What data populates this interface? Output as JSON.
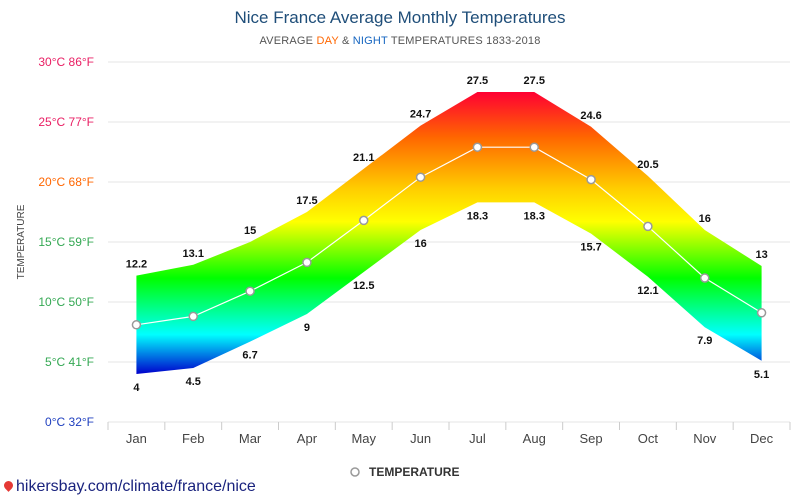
{
  "title": "Nice France Average Monthly Temperatures",
  "subtitle": {
    "prefix": "AVERAGE ",
    "day": "DAY",
    "middle": " & ",
    "night": "NIGHT",
    "suffix": " TEMPERATURES 1833-2018"
  },
  "footer": "hikersbay.com/climate/france/nice",
  "colors": {
    "title": "#1f4e79",
    "day": "#ff6600",
    "night": "#1565c0",
    "band_gradient": [
      "#ff0033",
      "#ff6600",
      "#ffcc00",
      "#ffff00",
      "#00ff00",
      "#00ffff",
      "#0000cc"
    ],
    "y_tick_colors": [
      "#1f3fbf",
      "#34a853",
      "#34a853",
      "#34a853",
      "#ff6600",
      "#e91e63",
      "#e91e63"
    ]
  },
  "chart_data": {
    "type": "area",
    "title": "Nice France Average Monthly Temperatures",
    "ylabel": "TEMPERATURE",
    "ylim": [
      0,
      30
    ],
    "y_ticks": [
      {
        "value": 0,
        "label": "0°C 32°F"
      },
      {
        "value": 5,
        "label": "5°C 41°F"
      },
      {
        "value": 10,
        "label": "10°C 50°F"
      },
      {
        "value": 15,
        "label": "15°C 59°F"
      },
      {
        "value": 20,
        "label": "20°C 68°F"
      },
      {
        "value": 25,
        "label": "25°C 77°F"
      },
      {
        "value": 30,
        "label": "30°C 86°F"
      }
    ],
    "categories": [
      "Jan",
      "Feb",
      "Mar",
      "Apr",
      "May",
      "Jun",
      "Jul",
      "Aug",
      "Sep",
      "Oct",
      "Nov",
      "Dec"
    ],
    "series": [
      {
        "name": "DAY",
        "values": [
          12.2,
          13.1,
          15,
          17.5,
          21.1,
          24.7,
          27.5,
          27.5,
          24.6,
          20.5,
          16,
          13
        ]
      },
      {
        "name": "NIGHT",
        "values": [
          4,
          4.5,
          6.7,
          9,
          12.5,
          16,
          18.3,
          18.3,
          15.7,
          12.1,
          7.9,
          5.1
        ]
      },
      {
        "name": "TEMPERATURE",
        "values": [
          8.1,
          8.8,
          10.9,
          13.3,
          16.8,
          20.4,
          22.9,
          22.9,
          20.2,
          16.3,
          12,
          9.1
        ]
      }
    ],
    "legend": {
      "label": "TEMPERATURE",
      "position": "bottom"
    },
    "grid": true
  }
}
